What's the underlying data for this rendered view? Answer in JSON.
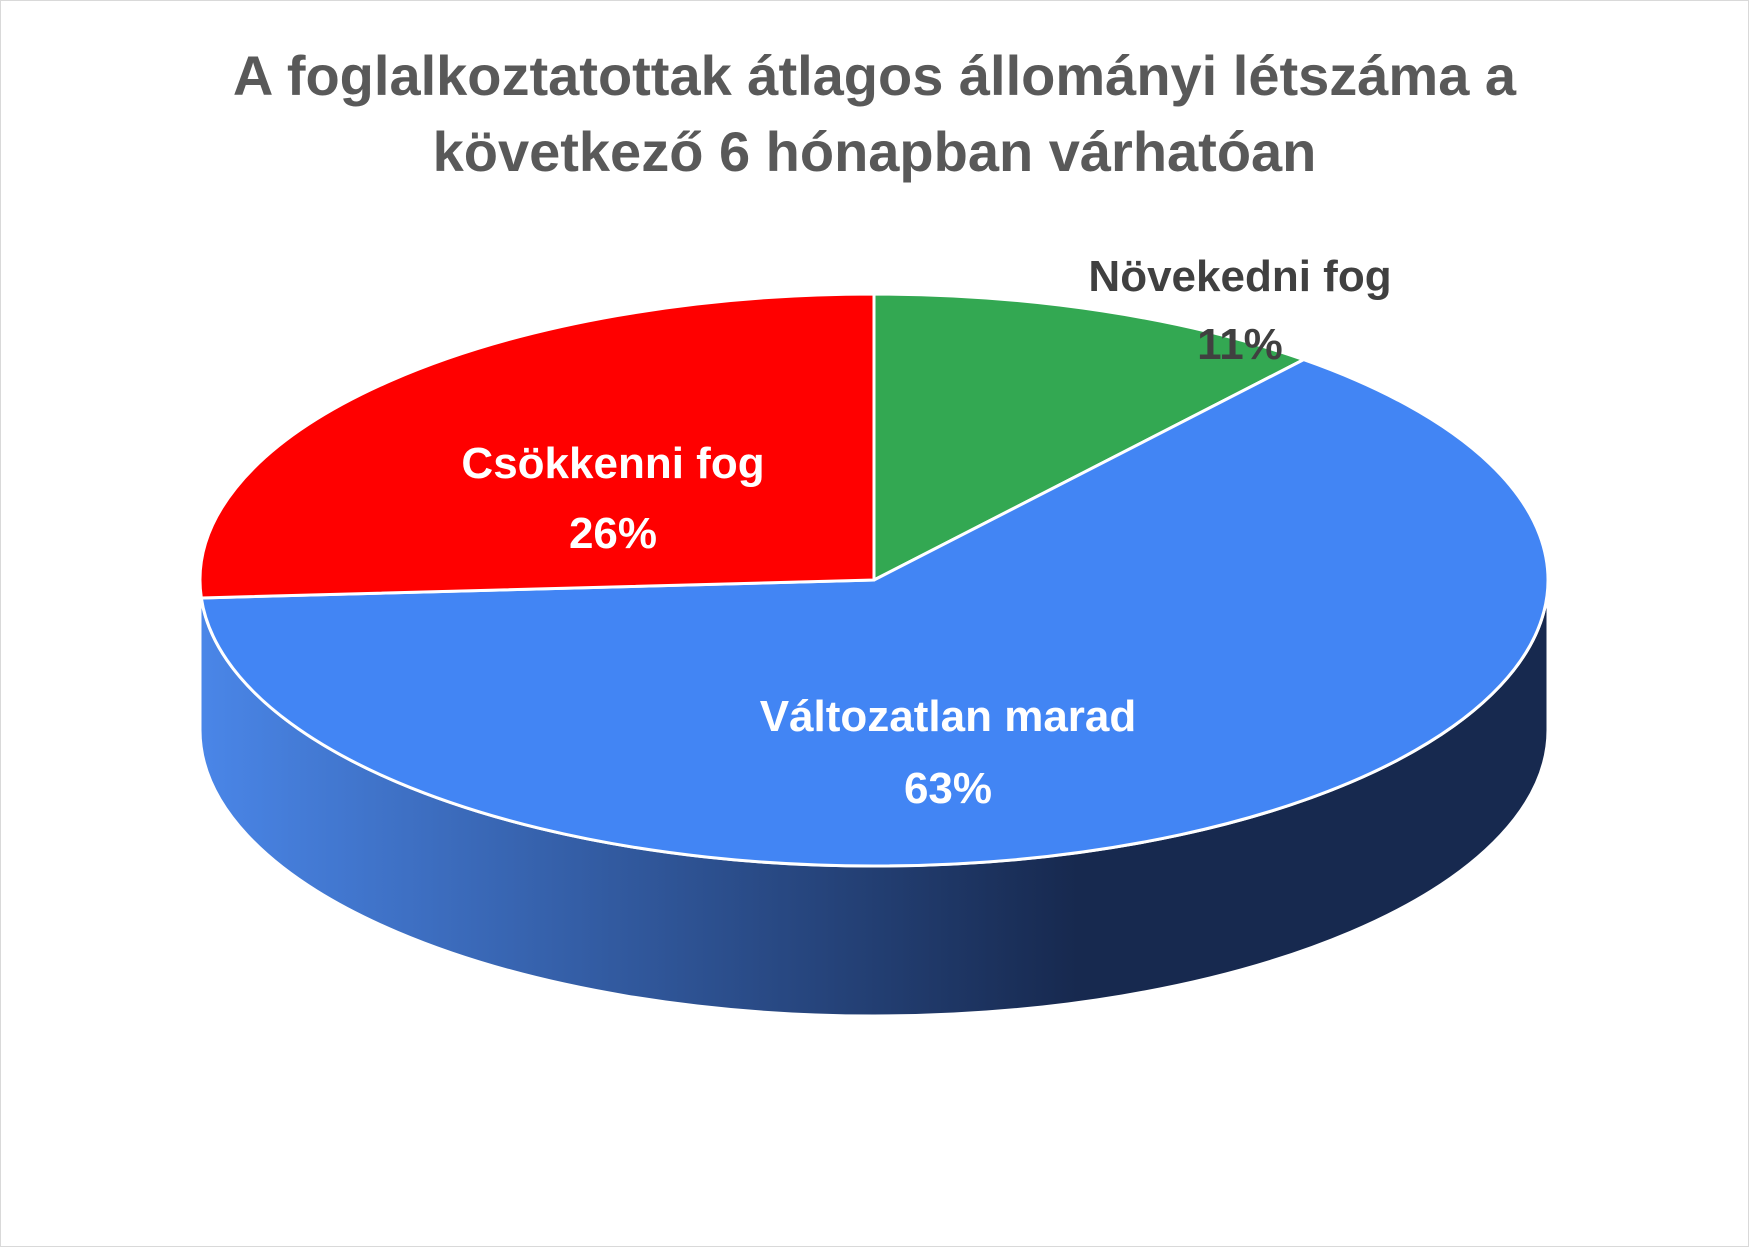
{
  "chart_data": {
    "type": "pie",
    "title_lines": [
      "A foglalkoztatottak átlagos állományi létszáma a",
      "következő 6 hónapban várhatóan"
    ],
    "slices": [
      {
        "label": "Növekedni fog",
        "value": 11,
        "value_label": "11%",
        "color": "#33a852",
        "label_color": "#404040"
      },
      {
        "label": "Változatlan marad",
        "value": 63,
        "value_label": "63%",
        "color": "#4285f4",
        "label_color": "#ffffff"
      },
      {
        "label": "Csökkenni fog",
        "value": 26,
        "value_label": "26%",
        "color": "#ff0000",
        "label_color": "#ffffff"
      }
    ],
    "side_color_light": "#4a86e8",
    "side_color_dark": "#17294f"
  }
}
